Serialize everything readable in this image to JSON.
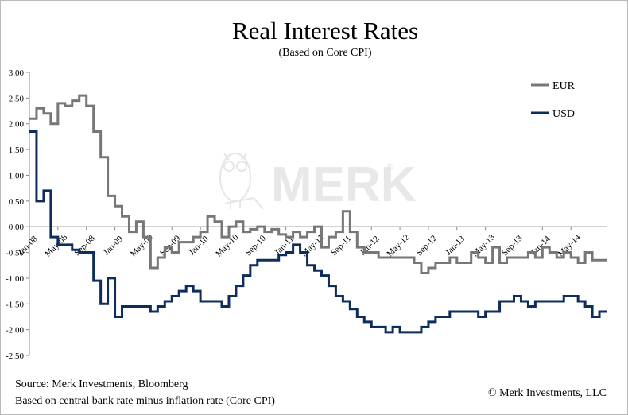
{
  "chart_data": {
    "type": "line",
    "title": "Real Interest Rates",
    "subtitle": "(Based on Core CPI)",
    "xlabel": "",
    "ylabel": "",
    "ylim": [
      -2.5,
      3.0
    ],
    "yticks": [
      3.0,
      2.5,
      2.0,
      1.5,
      1.0,
      0.5,
      0.0,
      -0.5,
      -1.0,
      -1.5,
      -2.0,
      -2.5
    ],
    "ytick_labels": [
      "3.00",
      "2.50",
      "2.00",
      "1.50",
      "1.00",
      "0.50",
      "0.00",
      "-0.50",
      "-1.00",
      "-1.50",
      "-2.00",
      "-2.50"
    ],
    "xlim": [
      "2008-01",
      "2014-10"
    ],
    "xticks": [
      "2008-01",
      "2008-05",
      "2008-09",
      "2009-01",
      "2009-05",
      "2009-09",
      "2010-01",
      "2010-05",
      "2010-09",
      "2011-01",
      "2011-05",
      "2011-09",
      "2012-01",
      "2012-05",
      "2012-09",
      "2013-01",
      "2013-05",
      "2013-09",
      "2014-01",
      "2014-05"
    ],
    "xtick_labels": [
      "Jan-08",
      "May-08",
      "Sep-08",
      "Jan-09",
      "May-09",
      "Sep-09",
      "Jan-10",
      "May-10",
      "Sep-10",
      "Jan-11",
      "May-11",
      "Sep-11",
      "Jan-12",
      "May-12",
      "Sep-12",
      "Jan-13",
      "May-13",
      "Sep-13",
      "Jan-14",
      "May-14"
    ],
    "grid": "none",
    "legend_position": "top-right",
    "series": [
      {
        "name": "EUR",
        "color": "#777777",
        "points": [
          [
            "2008-01",
            2.1
          ],
          [
            "2008-02",
            2.3
          ],
          [
            "2008-03",
            2.2
          ],
          [
            "2008-04",
            2.0
          ],
          [
            "2008-05",
            2.4
          ],
          [
            "2008-06",
            2.35
          ],
          [
            "2008-07",
            2.45
          ],
          [
            "2008-08",
            2.55
          ],
          [
            "2008-09",
            2.35
          ],
          [
            "2008-10",
            1.85
          ],
          [
            "2008-11",
            1.35
          ],
          [
            "2008-12",
            0.6
          ],
          [
            "2009-01",
            0.4
          ],
          [
            "2009-02",
            0.2
          ],
          [
            "2009-03",
            -0.1
          ],
          [
            "2009-04",
            0.1
          ],
          [
            "2009-05",
            -0.2
          ],
          [
            "2009-06",
            -0.8
          ],
          [
            "2009-07",
            -0.6
          ],
          [
            "2009-08",
            -0.4
          ],
          [
            "2009-09",
            -0.5
          ],
          [
            "2009-10",
            -0.3
          ],
          [
            "2009-11",
            -0.3
          ],
          [
            "2009-12",
            -0.2
          ],
          [
            "2010-01",
            -0.1
          ],
          [
            "2010-02",
            0.2
          ],
          [
            "2010-03",
            0.1
          ],
          [
            "2010-04",
            -0.2
          ],
          [
            "2010-05",
            0.0
          ],
          [
            "2010-06",
            0.1
          ],
          [
            "2010-07",
            -0.1
          ],
          [
            "2010-08",
            -0.05
          ],
          [
            "2010-09",
            0.0
          ],
          [
            "2010-10",
            -0.1
          ],
          [
            "2010-11",
            -0.05
          ],
          [
            "2010-12",
            -0.15
          ],
          [
            "2011-01",
            -0.2
          ],
          [
            "2011-02",
            -0.1
          ],
          [
            "2011-03",
            -0.2
          ],
          [
            "2011-04",
            -0.1
          ],
          [
            "2011-05",
            0.0
          ],
          [
            "2011-06",
            -0.4
          ],
          [
            "2011-07",
            -0.2
          ],
          [
            "2011-08",
            -0.1
          ],
          [
            "2011-09",
            0.3
          ],
          [
            "2011-10",
            -0.1
          ],
          [
            "2011-11",
            -0.4
          ],
          [
            "2011-12",
            -0.5
          ],
          [
            "2012-01",
            -0.5
          ],
          [
            "2012-02",
            -0.6
          ],
          [
            "2012-03",
            -0.6
          ],
          [
            "2012-04",
            -0.6
          ],
          [
            "2012-05",
            -0.6
          ],
          [
            "2012-06",
            -0.6
          ],
          [
            "2012-07",
            -0.7
          ],
          [
            "2012-08",
            -0.9
          ],
          [
            "2012-09",
            -0.8
          ],
          [
            "2012-10",
            -0.7
          ],
          [
            "2012-11",
            -0.7
          ],
          [
            "2012-12",
            -0.6
          ],
          [
            "2013-01",
            -0.7
          ],
          [
            "2013-02",
            -0.7
          ],
          [
            "2013-03",
            -0.5
          ],
          [
            "2013-04",
            -0.6
          ],
          [
            "2013-05",
            -0.7
          ],
          [
            "2013-06",
            -0.4
          ],
          [
            "2013-07",
            -0.7
          ],
          [
            "2013-08",
            -0.6
          ],
          [
            "2013-09",
            -0.6
          ],
          [
            "2013-10",
            -0.6
          ],
          [
            "2013-11",
            -0.5
          ],
          [
            "2013-12",
            -0.6
          ],
          [
            "2014-01",
            -0.4
          ],
          [
            "2014-02",
            -0.5
          ],
          [
            "2014-03",
            -0.6
          ],
          [
            "2014-04",
            -0.5
          ],
          [
            "2014-05",
            -0.6
          ],
          [
            "2014-06",
            -0.7
          ],
          [
            "2014-07",
            -0.5
          ],
          [
            "2014-08",
            -0.65
          ],
          [
            "2014-09",
            -0.65
          ]
        ]
      },
      {
        "name": "USD",
        "color": "#0d2d5c",
        "points": [
          [
            "2008-01",
            1.85
          ],
          [
            "2008-02",
            0.5
          ],
          [
            "2008-03",
            0.7
          ],
          [
            "2008-04",
            -0.2
          ],
          [
            "2008-05",
            -0.35
          ],
          [
            "2008-06",
            -0.35
          ],
          [
            "2008-07",
            -0.45
          ],
          [
            "2008-08",
            -0.5
          ],
          [
            "2008-09",
            -0.5
          ],
          [
            "2008-10",
            -1.05
          ],
          [
            "2008-11",
            -1.5
          ],
          [
            "2008-12",
            -1.0
          ],
          [
            "2009-01",
            -1.75
          ],
          [
            "2009-02",
            -1.55
          ],
          [
            "2009-03",
            -1.55
          ],
          [
            "2009-04",
            -1.55
          ],
          [
            "2009-05",
            -1.55
          ],
          [
            "2009-06",
            -1.65
          ],
          [
            "2009-07",
            -1.55
          ],
          [
            "2009-08",
            -1.45
          ],
          [
            "2009-09",
            -1.35
          ],
          [
            "2009-10",
            -1.25
          ],
          [
            "2009-11",
            -1.15
          ],
          [
            "2009-12",
            -1.25
          ],
          [
            "2010-01",
            -1.45
          ],
          [
            "2010-02",
            -1.45
          ],
          [
            "2010-03",
            -1.45
          ],
          [
            "2010-04",
            -1.55
          ],
          [
            "2010-05",
            -1.35
          ],
          [
            "2010-06",
            -1.15
          ],
          [
            "2010-07",
            -0.95
          ],
          [
            "2010-08",
            -0.75
          ],
          [
            "2010-09",
            -0.65
          ],
          [
            "2010-10",
            -0.65
          ],
          [
            "2010-11",
            -0.65
          ],
          [
            "2010-12",
            -0.55
          ],
          [
            "2011-01",
            -0.5
          ],
          [
            "2011-02",
            -0.35
          ],
          [
            "2011-03",
            -0.5
          ],
          [
            "2011-04",
            -0.75
          ],
          [
            "2011-05",
            -0.85
          ],
          [
            "2011-06",
            -0.95
          ],
          [
            "2011-07",
            -1.15
          ],
          [
            "2011-08",
            -1.35
          ],
          [
            "2011-09",
            -1.45
          ],
          [
            "2011-10",
            -1.6
          ],
          [
            "2011-11",
            -1.75
          ],
          [
            "2011-12",
            -1.85
          ],
          [
            "2012-01",
            -1.95
          ],
          [
            "2012-02",
            -1.95
          ],
          [
            "2012-03",
            -2.05
          ],
          [
            "2012-04",
            -1.95
          ],
          [
            "2012-05",
            -2.05
          ],
          [
            "2012-06",
            -2.05
          ],
          [
            "2012-07",
            -2.05
          ],
          [
            "2012-08",
            -1.95
          ],
          [
            "2012-09",
            -1.85
          ],
          [
            "2012-10",
            -1.75
          ],
          [
            "2012-11",
            -1.75
          ],
          [
            "2012-12",
            -1.65
          ],
          [
            "2013-01",
            -1.65
          ],
          [
            "2013-02",
            -1.65
          ],
          [
            "2013-03",
            -1.65
          ],
          [
            "2013-04",
            -1.75
          ],
          [
            "2013-05",
            -1.65
          ],
          [
            "2013-06",
            -1.65
          ],
          [
            "2013-07",
            -1.45
          ],
          [
            "2013-08",
            -1.45
          ],
          [
            "2013-09",
            -1.35
          ],
          [
            "2013-10",
            -1.45
          ],
          [
            "2013-11",
            -1.55
          ],
          [
            "2013-12",
            -1.45
          ],
          [
            "2014-01",
            -1.45
          ],
          [
            "2014-02",
            -1.45
          ],
          [
            "2014-03",
            -1.45
          ],
          [
            "2014-04",
            -1.35
          ],
          [
            "2014-05",
            -1.35
          ],
          [
            "2014-06",
            -1.45
          ],
          [
            "2014-07",
            -1.55
          ],
          [
            "2014-08",
            -1.75
          ],
          [
            "2014-09",
            -1.65
          ],
          [
            "2014-10",
            -1.65
          ]
        ]
      }
    ],
    "source": "Source: Merk Investments, Bloomberg",
    "note": "Based on central bank rate minus inflation rate (Core CPI)",
    "copyright": "© Merk Investments, LLC",
    "watermark": "MERK",
    "watermark_mark": "®"
  }
}
